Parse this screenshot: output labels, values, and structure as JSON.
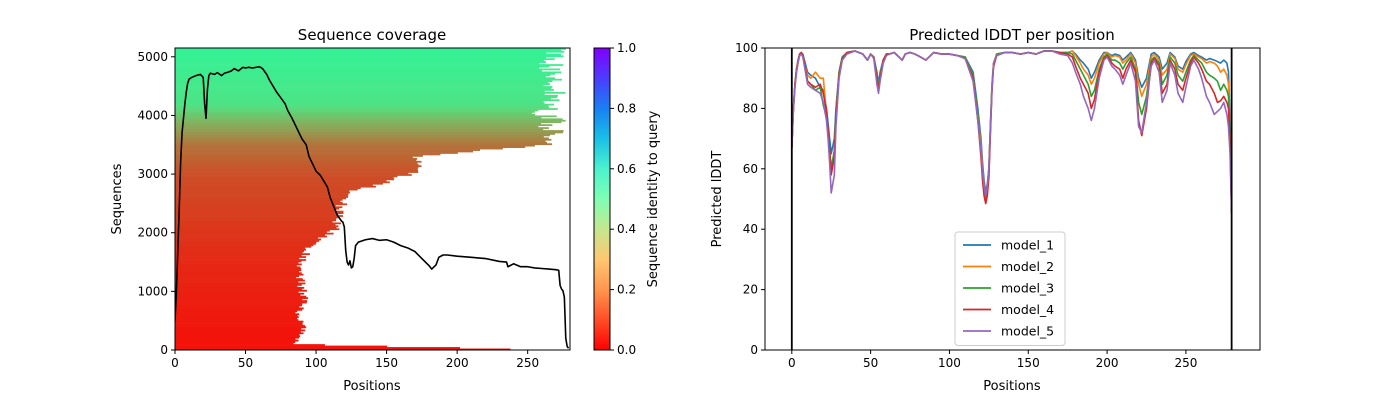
{
  "chart_data": [
    {
      "type": "heatmap",
      "title": "Sequence coverage",
      "xlabel": "Positions",
      "ylabel": "Sequences",
      "xlim": [
        0,
        280
      ],
      "ylim": [
        0,
        5150
      ],
      "xticks": [
        0,
        50,
        100,
        150,
        200,
        250
      ],
      "yticks": [
        0,
        1000,
        2000,
        3000,
        4000,
        5000
      ],
      "grid": false,
      "colorbar": {
        "label": "Sequence identity to query",
        "range": [
          0.0,
          1.0
        ],
        "ticks": [
          "0.0",
          "0.2",
          "0.4",
          "0.6",
          "0.8",
          "1.0"
        ],
        "colormap": "rainbow_r"
      },
      "heatmap_color_by_sequence_index": {
        "sequence": [
          0,
          1500,
          3000,
          3500,
          3900,
          4200,
          5150
        ],
        "identity": [
          0.02,
          0.05,
          0.1,
          0.15,
          0.25,
          0.35,
          0.4
        ]
      },
      "heatmap_extent_by_sequence_index": {
        "sequence": [
          0,
          100,
          300,
          600,
          900,
          1200,
          1500,
          1800,
          2100,
          2400,
          2700,
          3000,
          3300,
          3500,
          3600,
          3750,
          3800,
          3900,
          4000,
          4200,
          4600,
          5000,
          5150
        ],
        "end_position": [
          280,
          85,
          95,
          90,
          95,
          92,
          93,
          100,
          120,
          120,
          130,
          175,
          180,
          270,
          280,
          280,
          275,
          280,
          270,
          280,
          275,
          278,
          278
        ]
      },
      "series": [
        {
          "name": "coverage",
          "color": "#000000",
          "x": [
            0,
            1,
            2,
            3,
            4,
            5,
            6,
            7,
            8,
            9,
            10,
            12,
            15,
            18,
            20,
            21,
            22,
            23,
            24,
            25,
            28,
            30,
            33,
            35,
            38,
            40,
            42,
            45,
            48,
            50,
            52,
            55,
            60,
            62,
            65,
            67,
            70,
            72,
            75,
            78,
            80,
            83,
            85,
            88,
            90,
            93,
            95,
            98,
            100,
            103,
            105,
            108,
            110,
            113,
            115,
            118,
            119,
            120,
            121,
            122,
            123,
            124,
            125,
            126,
            127,
            128,
            130,
            135,
            140,
            145,
            150,
            155,
            160,
            165,
            170,
            175,
            180,
            182,
            185,
            187,
            190,
            193,
            200,
            210,
            220,
            230,
            235,
            236,
            240,
            245,
            250,
            255,
            260,
            265,
            270,
            272,
            273,
            274,
            275,
            276,
            277,
            278,
            279
          ],
          "values": [
            500,
            1000,
            1700,
            2400,
            3200,
            3700,
            3950,
            4200,
            4400,
            4550,
            4620,
            4650,
            4680,
            4700,
            4650,
            4200,
            3950,
            4450,
            4680,
            4720,
            4700,
            4730,
            4680,
            4720,
            4740,
            4760,
            4800,
            4760,
            4820,
            4810,
            4820,
            4810,
            4830,
            4800,
            4700,
            4600,
            4480,
            4400,
            4300,
            4200,
            4080,
            3950,
            3850,
            3700,
            3600,
            3500,
            3300,
            3150,
            3050,
            2980,
            2900,
            2780,
            2600,
            2420,
            2300,
            2200,
            2180,
            2100,
            1700,
            1500,
            1450,
            1520,
            1400,
            1420,
            1560,
            1780,
            1840,
            1880,
            1900,
            1870,
            1880,
            1840,
            1780,
            1740,
            1680,
            1560,
            1440,
            1380,
            1450,
            1580,
            1620,
            1620,
            1600,
            1580,
            1560,
            1510,
            1500,
            1420,
            1470,
            1420,
            1420,
            1400,
            1390,
            1380,
            1370,
            1360,
            1100,
            1040,
            1010,
            900,
            200,
            60,
            30
          ]
        }
      ]
    },
    {
      "type": "line",
      "title": "Predicted lDDT per position",
      "xlabel": "Positions",
      "ylabel": "Predicted lDDT",
      "xlim": [
        -17,
        297
      ],
      "ylim": [
        0,
        100
      ],
      "xticks": [
        0,
        50,
        100,
        150,
        200,
        250
      ],
      "yticks": [
        0,
        20,
        40,
        60,
        80,
        100
      ],
      "vlines": [
        0,
        279
      ],
      "grid": false,
      "legend": "lower center",
      "x": [
        0,
        1,
        2,
        3,
        4,
        5,
        6,
        7,
        8,
        9,
        10,
        12,
        15,
        18,
        20,
        22,
        23,
        24,
        25,
        27,
        28,
        30,
        32,
        35,
        40,
        45,
        48,
        50,
        52,
        54,
        55,
        56,
        58,
        60,
        62,
        65,
        68,
        70,
        72,
        75,
        78,
        80,
        85,
        90,
        95,
        100,
        105,
        110,
        115,
        118,
        120,
        121,
        122,
        123,
        124,
        125,
        126,
        127,
        128,
        130,
        135,
        140,
        145,
        150,
        155,
        160,
        165,
        170,
        175,
        178,
        180,
        183,
        185,
        188,
        190,
        192,
        195,
        198,
        200,
        203,
        205,
        208,
        210,
        212,
        215,
        218,
        220,
        222,
        225,
        228,
        230,
        233,
        235,
        238,
        240,
        243,
        245,
        248,
        250,
        253,
        255,
        258,
        260,
        263,
        265,
        268,
        270,
        272,
        274,
        276,
        277,
        278,
        279
      ],
      "series": [
        {
          "name": "model_1",
          "color": "#1f77b4",
          "values": [
            67,
            80,
            88,
            93,
            96,
            98,
            98.5,
            98,
            96,
            94,
            92,
            91,
            90,
            87,
            86,
            80,
            75,
            70,
            65,
            70,
            80,
            92,
            97,
            98.5,
            99,
            98,
            96,
            98,
            97,
            92,
            88,
            92,
            96,
            98,
            98,
            98.5,
            97,
            96,
            98,
            98.5,
            98,
            97.5,
            96,
            98.5,
            98,
            98,
            97.5,
            97,
            92,
            80,
            70,
            62,
            56,
            52,
            55,
            60,
            75,
            88,
            95,
            98,
            98.5,
            98.5,
            98,
            98.5,
            98,
            99,
            99,
            98.5,
            98.5,
            99,
            98,
            96,
            95,
            93,
            90,
            92,
            96,
            98.5,
            98.5,
            97.5,
            98,
            97.5,
            96,
            97,
            98.5,
            96,
            90,
            87,
            90,
            98,
            98.5,
            97,
            93,
            95,
            98.5,
            97,
            94,
            93,
            95.5,
            98,
            98.5,
            97.5,
            97,
            96,
            96.5,
            96,
            95.5,
            95,
            96,
            95,
            92,
            75,
            48
          ]
        },
        {
          "name": "model_2",
          "color": "#ff7f0e",
          "values": [
            67,
            80,
            87,
            92,
            95,
            97.5,
            98,
            97.5,
            95,
            93,
            91,
            90,
            92,
            90,
            90,
            78,
            72,
            66,
            60,
            66,
            78,
            92,
            97,
            98.5,
            99,
            98,
            96,
            98,
            97,
            91,
            87,
            91,
            96,
            98,
            98,
            98.5,
            97,
            96,
            98,
            98.5,
            98,
            97.5,
            96,
            98.5,
            98,
            98,
            97.5,
            97,
            91,
            78,
            68,
            60,
            54,
            51,
            54,
            60,
            74,
            88,
            95,
            98,
            98.5,
            98.5,
            98,
            98.5,
            98,
            99,
            99,
            98.5,
            98.5,
            99,
            97.5,
            95,
            93,
            91,
            88,
            90,
            95,
            98,
            98.5,
            97,
            97.5,
            97,
            95,
            96,
            98,
            95,
            88,
            84,
            88,
            97,
            98,
            96,
            91,
            93,
            98,
            96.5,
            93,
            92,
            94.5,
            97.5,
            98,
            97,
            96.5,
            95,
            95.5,
            95,
            94,
            92,
            93,
            91,
            88,
            72,
            46
          ]
        },
        {
          "name": "model_3",
          "color": "#2ca02c",
          "values": [
            67,
            80,
            88,
            93,
            96,
            98,
            98.5,
            97.5,
            95,
            92,
            89,
            88,
            86,
            87,
            81,
            77,
            72,
            66,
            60,
            66,
            78,
            92,
            97,
            98.5,
            99,
            98,
            96,
            98,
            97,
            91,
            87,
            91,
            96,
            98,
            98,
            98.5,
            97,
            96,
            98,
            98.5,
            98,
            97.5,
            96,
            98.5,
            98,
            98,
            97.5,
            97,
            91,
            78,
            66,
            58,
            53,
            50,
            53,
            58,
            73,
            87,
            94,
            98,
            98.5,
            98.5,
            98,
            98.5,
            98,
            99,
            99,
            98.5,
            98.5,
            98,
            96,
            93,
            91,
            88,
            84,
            86,
            93,
            97,
            98,
            96,
            96,
            95,
            93,
            95,
            97,
            93,
            82,
            78,
            84,
            96,
            97,
            95,
            88,
            91,
            97,
            95,
            91,
            89,
            92,
            96,
            97.5,
            96,
            95,
            92,
            91,
            90,
            89,
            86,
            88,
            86,
            84,
            70,
            46
          ]
        },
        {
          "name": "model_4",
          "color": "#d62728",
          "values": [
            67,
            80,
            88,
            93,
            96,
            98,
            98.5,
            97.5,
            95,
            92,
            89,
            88,
            87,
            88,
            85,
            79,
            73,
            66,
            58,
            64,
            77,
            91,
            96.5,
            98.5,
            99,
            98,
            96,
            98,
            97,
            90,
            86,
            90,
            96,
            98,
            98,
            98.5,
            97,
            96,
            98,
            98.5,
            98,
            97.5,
            96,
            98.5,
            98,
            98,
            97.5,
            96.5,
            90,
            76,
            64,
            56,
            51,
            48.5,
            51,
            57,
            72,
            86,
            94,
            97.5,
            98.5,
            98.5,
            98,
            98.5,
            98,
            99,
            99,
            98.5,
            98,
            97,
            94,
            90,
            88,
            85,
            80,
            83,
            92,
            96.5,
            97.5,
            95,
            94,
            93,
            90,
            93,
            96,
            92,
            76,
            71,
            80,
            95,
            96.5,
            94,
            85,
            88,
            96,
            93,
            88,
            86,
            90,
            95,
            97,
            95,
            93,
            89,
            88,
            85,
            82,
            82.5,
            84,
            82,
            80,
            68,
            45
          ]
        },
        {
          "name": "model_5",
          "color": "#9467bd",
          "values": [
            67,
            79,
            87,
            92,
            95.5,
            97.5,
            98,
            97,
            94,
            91,
            88,
            87,
            86,
            85,
            82,
            76,
            70,
            62,
            52,
            58,
            74,
            90,
            96,
            98,
            99,
            98,
            96,
            98,
            96.5,
            88,
            85,
            89,
            95,
            97.5,
            98,
            98.5,
            97,
            96,
            98,
            98.5,
            98,
            97.5,
            96,
            98.5,
            98,
            98,
            97.5,
            96.5,
            89,
            76,
            66,
            59,
            54,
            51,
            54,
            60,
            74,
            87,
            95,
            97.5,
            98.5,
            98.5,
            98,
            98.5,
            98,
            99,
            99,
            98,
            97.5,
            95,
            92,
            88,
            84,
            80,
            76,
            80,
            90,
            96,
            97,
            94,
            93,
            91,
            88,
            91,
            95,
            89,
            74,
            72,
            82,
            94,
            96,
            92,
            82,
            86,
            95,
            91,
            85,
            82,
            87,
            94,
            96,
            93,
            90,
            84,
            82,
            78,
            79,
            80,
            82,
            78,
            74,
            65,
            45
          ]
        }
      ]
    }
  ]
}
